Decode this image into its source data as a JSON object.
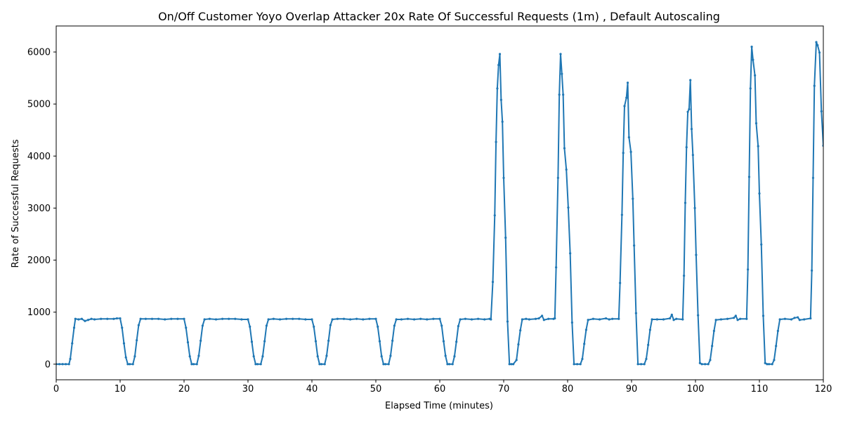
{
  "chart_data": {
    "type": "line",
    "title": "On/Off Customer Yoyo Overlap Attacker 20x Rate Of Successful Requests (1m) , Default Autoscaling",
    "xlabel": "Elapsed Time (minutes)",
    "ylabel": "Rate of Successful Requests",
    "xlim": [
      0,
      120
    ],
    "ylim": [
      -300,
      6500
    ],
    "xticks": [
      0,
      10,
      20,
      30,
      40,
      50,
      60,
      70,
      80,
      90,
      100,
      110,
      120
    ],
    "yticks": [
      0,
      1000,
      2000,
      3000,
      4000,
      5000,
      6000
    ],
    "grid": false,
    "legend": "none",
    "series": [
      {
        "color": "#1f77b4",
        "marker": "dot",
        "points": [
          [
            0,
            0
          ],
          [
            0.5,
            0
          ],
          [
            1,
            0
          ],
          [
            1.5,
            0
          ],
          [
            2,
            0
          ],
          [
            2.2,
            100
          ],
          [
            2.5,
            400
          ],
          [
            2.8,
            700
          ],
          [
            3,
            870
          ],
          [
            3.5,
            860
          ],
          [
            4,
            870
          ],
          [
            4.5,
            830
          ],
          [
            5,
            850
          ],
          [
            5.5,
            870
          ],
          [
            6,
            860
          ],
          [
            7,
            870
          ],
          [
            8,
            870
          ],
          [
            9,
            870
          ],
          [
            9.5,
            880
          ],
          [
            10,
            880
          ],
          [
            10.3,
            700
          ],
          [
            10.6,
            400
          ],
          [
            10.9,
            130
          ],
          [
            11.2,
            0
          ],
          [
            11.5,
            0
          ],
          [
            12,
            0
          ],
          [
            12.3,
            150
          ],
          [
            12.6,
            460
          ],
          [
            12.9,
            750
          ],
          [
            13.2,
            870
          ],
          [
            14,
            870
          ],
          [
            15,
            870
          ],
          [
            16,
            870
          ],
          [
            17,
            860
          ],
          [
            18,
            870
          ],
          [
            19,
            870
          ],
          [
            20,
            870
          ],
          [
            20.3,
            700
          ],
          [
            20.6,
            420
          ],
          [
            20.9,
            150
          ],
          [
            21.2,
            0
          ],
          [
            21.5,
            0
          ],
          [
            22,
            0
          ],
          [
            22.3,
            160
          ],
          [
            22.6,
            450
          ],
          [
            22.9,
            740
          ],
          [
            23.2,
            860
          ],
          [
            24,
            870
          ],
          [
            25,
            860
          ],
          [
            26,
            870
          ],
          [
            27,
            870
          ],
          [
            28,
            870
          ],
          [
            29,
            860
          ],
          [
            30,
            860
          ],
          [
            30.3,
            720
          ],
          [
            30.6,
            430
          ],
          [
            30.9,
            150
          ],
          [
            31.2,
            0
          ],
          [
            31.5,
            0
          ],
          [
            32,
            0
          ],
          [
            32.3,
            150
          ],
          [
            32.6,
            440
          ],
          [
            32.9,
            740
          ],
          [
            33.2,
            860
          ],
          [
            34,
            870
          ],
          [
            35,
            860
          ],
          [
            36,
            870
          ],
          [
            37,
            870
          ],
          [
            38,
            870
          ],
          [
            39,
            860
          ],
          [
            40,
            860
          ],
          [
            40.3,
            720
          ],
          [
            40.6,
            440
          ],
          [
            40.9,
            150
          ],
          [
            41.2,
            0
          ],
          [
            41.5,
            0
          ],
          [
            42,
            0
          ],
          [
            42.3,
            160
          ],
          [
            42.6,
            450
          ],
          [
            42.9,
            750
          ],
          [
            43.2,
            860
          ],
          [
            44,
            870
          ],
          [
            45,
            870
          ],
          [
            46,
            860
          ],
          [
            47,
            870
          ],
          [
            48,
            860
          ],
          [
            49,
            870
          ],
          [
            50,
            870
          ],
          [
            50.3,
            720
          ],
          [
            50.6,
            440
          ],
          [
            50.9,
            150
          ],
          [
            51.2,
            0
          ],
          [
            51.5,
            0
          ],
          [
            52,
            0
          ],
          [
            52.3,
            160
          ],
          [
            52.6,
            450
          ],
          [
            52.9,
            740
          ],
          [
            53.2,
            860
          ],
          [
            54,
            860
          ],
          [
            55,
            870
          ],
          [
            56,
            860
          ],
          [
            57,
            870
          ],
          [
            58,
            860
          ],
          [
            59,
            870
          ],
          [
            60,
            870
          ],
          [
            60.3,
            740
          ],
          [
            60.6,
            440
          ],
          [
            60.9,
            160
          ],
          [
            61.2,
            0
          ],
          [
            61.5,
            0
          ],
          [
            62,
            0
          ],
          [
            62.3,
            150
          ],
          [
            62.6,
            430
          ],
          [
            62.9,
            730
          ],
          [
            63.2,
            860
          ],
          [
            64,
            870
          ],
          [
            65,
            860
          ],
          [
            66,
            870
          ],
          [
            67,
            860
          ],
          [
            67.8,
            870
          ],
          [
            68,
            860
          ],
          [
            68.3,
            1580
          ],
          [
            68.6,
            2860
          ],
          [
            68.8,
            4270
          ],
          [
            69,
            5300
          ],
          [
            69.2,
            5750
          ],
          [
            69.4,
            5960
          ],
          [
            69.6,
            5080
          ],
          [
            69.8,
            4660
          ],
          [
            70,
            3580
          ],
          [
            70.3,
            2430
          ],
          [
            70.6,
            820
          ],
          [
            70.9,
            0
          ],
          [
            71.2,
            0
          ],
          [
            71.5,
            0
          ],
          [
            72,
            80
          ],
          [
            72.3,
            380
          ],
          [
            72.6,
            650
          ],
          [
            72.9,
            860
          ],
          [
            73.5,
            870
          ],
          [
            74,
            860
          ],
          [
            75,
            870
          ],
          [
            75.5,
            880
          ],
          [
            76,
            930
          ],
          [
            76.3,
            850
          ],
          [
            77,
            870
          ],
          [
            77.8,
            870
          ],
          [
            78,
            880
          ],
          [
            78.2,
            1860
          ],
          [
            78.5,
            3580
          ],
          [
            78.7,
            5180
          ],
          [
            78.9,
            5960
          ],
          [
            79.1,
            5580
          ],
          [
            79.3,
            5180
          ],
          [
            79.5,
            4150
          ],
          [
            79.8,
            3740
          ],
          [
            80.1,
            3010
          ],
          [
            80.4,
            2130
          ],
          [
            80.7,
            800
          ],
          [
            81,
            0
          ],
          [
            81.5,
            0
          ],
          [
            82,
            0
          ],
          [
            82.3,
            100
          ],
          [
            82.6,
            390
          ],
          [
            82.9,
            660
          ],
          [
            83.2,
            850
          ],
          [
            84,
            870
          ],
          [
            85,
            860
          ],
          [
            86,
            880
          ],
          [
            86.5,
            860
          ],
          [
            87,
            870
          ],
          [
            88,
            870
          ],
          [
            88.2,
            1560
          ],
          [
            88.5,
            2870
          ],
          [
            88.7,
            4060
          ],
          [
            88.9,
            4960
          ],
          [
            89.2,
            5120
          ],
          [
            89.4,
            5410
          ],
          [
            89.6,
            4360
          ],
          [
            89.9,
            4080
          ],
          [
            90.2,
            3180
          ],
          [
            90.4,
            2280
          ],
          [
            90.7,
            980
          ],
          [
            91,
            0
          ],
          [
            91.5,
            0
          ],
          [
            92,
            0
          ],
          [
            92.3,
            100
          ],
          [
            92.6,
            370
          ],
          [
            92.9,
            660
          ],
          [
            93.2,
            860
          ],
          [
            94,
            860
          ],
          [
            95,
            860
          ],
          [
            96,
            880
          ],
          [
            96.3,
            950
          ],
          [
            96.6,
            850
          ],
          [
            97,
            870
          ],
          [
            98,
            860
          ],
          [
            98.2,
            1700
          ],
          [
            98.4,
            3100
          ],
          [
            98.6,
            4170
          ],
          [
            98.8,
            4850
          ],
          [
            99,
            4900
          ],
          [
            99.2,
            5460
          ],
          [
            99.4,
            4520
          ],
          [
            99.6,
            4020
          ],
          [
            99.9,
            3000
          ],
          [
            100.1,
            2100
          ],
          [
            100.4,
            940
          ],
          [
            100.7,
            20
          ],
          [
            101,
            0
          ],
          [
            101.5,
            0
          ],
          [
            102,
            0
          ],
          [
            102.3,
            80
          ],
          [
            102.6,
            350
          ],
          [
            102.9,
            640
          ],
          [
            103.2,
            850
          ],
          [
            104,
            860
          ],
          [
            105,
            870
          ],
          [
            106,
            890
          ],
          [
            106.3,
            930
          ],
          [
            106.6,
            850
          ],
          [
            107,
            870
          ],
          [
            108,
            870
          ],
          [
            108.2,
            1820
          ],
          [
            108.4,
            3600
          ],
          [
            108.6,
            5300
          ],
          [
            108.8,
            6100
          ],
          [
            109,
            5850
          ],
          [
            109.3,
            5550
          ],
          [
            109.5,
            4630
          ],
          [
            109.8,
            4190
          ],
          [
            110,
            3280
          ],
          [
            110.3,
            2300
          ],
          [
            110.6,
            930
          ],
          [
            110.9,
            20
          ],
          [
            111.2,
            0
          ],
          [
            111.5,
            0
          ],
          [
            112,
            0
          ],
          [
            112.3,
            80
          ],
          [
            112.6,
            350
          ],
          [
            112.9,
            640
          ],
          [
            113.2,
            860
          ],
          [
            114,
            870
          ],
          [
            115,
            860
          ],
          [
            115.5,
            890
          ],
          [
            116,
            900
          ],
          [
            116.3,
            850
          ],
          [
            117,
            860
          ],
          [
            118,
            880
          ],
          [
            118.2,
            1800
          ],
          [
            118.4,
            3580
          ],
          [
            118.6,
            5350
          ],
          [
            118.9,
            6190
          ],
          [
            119.1,
            6130
          ],
          [
            119.4,
            5990
          ],
          [
            119.7,
            4860
          ],
          [
            120,
            4200
          ]
        ]
      }
    ]
  }
}
